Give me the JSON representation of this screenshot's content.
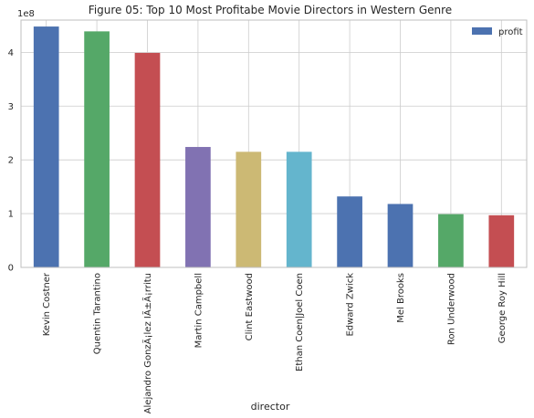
{
  "chart_data": {
    "type": "bar",
    "title": "Figure 05: Top 10 Most Profitabe Movie Directors in Western Genre",
    "xlabel": "director",
    "ylabel": "",
    "y_scale_label": "1e8",
    "ylim": [
      0,
      460000000
    ],
    "y_ticks": [
      0,
      100000000,
      200000000,
      300000000,
      400000000
    ],
    "y_tick_labels": [
      "0",
      "1",
      "2",
      "3",
      "4"
    ],
    "grid": true,
    "legend_position": "top-right",
    "categories": [
      "Kevin Costner",
      "Quentin Tarantino",
      "Alejandro GonzÃ¡lez IÃ±Ã¡rritu",
      "Martin Campbell",
      "Clint Eastwood",
      "Ethan Coen|Joel Coen",
      "Edward Zwick",
      "Mel Brooks",
      "Ron Underwood",
      "George Roy Hill"
    ],
    "series": [
      {
        "name": "profit",
        "values": [
          448000000,
          439000000,
          399000000,
          224000000,
          215000000,
          215000000,
          132000000,
          118000000,
          99000000,
          97000000
        ]
      }
    ],
    "bar_colors": [
      "#4c72b0",
      "#55a868",
      "#c44e52",
      "#8172b2",
      "#ccb974",
      "#64b5cd",
      "#4c72b0",
      "#4c72b0",
      "#55a868",
      "#c44e52"
    ],
    "legend_color": "#4c72b0",
    "grid_color": "#cccccc",
    "spine_color": "#bfbfbf"
  }
}
